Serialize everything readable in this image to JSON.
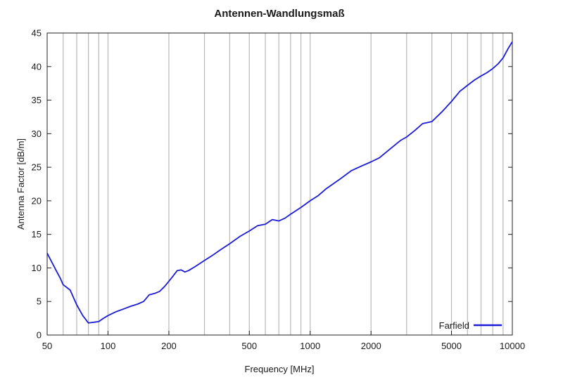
{
  "chart_data": {
    "type": "line",
    "title": "Antennen-Wandlungsmaß",
    "xlabel": "Frequency [MHz]",
    "ylabel": "Antenna Factor [dB/m]",
    "x_scale": "log",
    "xlim": [
      50,
      10000
    ],
    "ylim": [
      0,
      45
    ],
    "x_ticks": [
      50,
      100,
      200,
      500,
      1000,
      2000,
      5000,
      10000
    ],
    "x_tick_labels": [
      "50",
      "100",
      "200",
      "500",
      "1000",
      "2000",
      "5000",
      "10000"
    ],
    "y_ticks": [
      0,
      5,
      10,
      15,
      20,
      25,
      30,
      35,
      40,
      45
    ],
    "y_tick_labels": [
      "0",
      "5",
      "10",
      "15",
      "20",
      "25",
      "30",
      "35",
      "40",
      "45"
    ],
    "grid": "vertical",
    "legend_position": "bottom-right",
    "series": [
      {
        "name": "Farfield",
        "color": "#1c1cd6",
        "x": [
          50,
          55,
          58,
          60,
          65,
          70,
          75,
          80,
          85,
          90,
          95,
          100,
          110,
          120,
          130,
          140,
          150,
          160,
          170,
          180,
          190,
          200,
          210,
          220,
          230,
          240,
          250,
          270,
          300,
          330,
          360,
          400,
          450,
          500,
          550,
          600,
          650,
          700,
          750,
          800,
          900,
          1000,
          1100,
          1200,
          1400,
          1600,
          1800,
          2000,
          2200,
          2500,
          2800,
          3000,
          3300,
          3600,
          4000,
          4500,
          5000,
          5500,
          6000,
          6500,
          7000,
          7500,
          8000,
          8500,
          9000,
          9500,
          10000
        ],
        "values": [
          12.2,
          9.8,
          8.5,
          7.5,
          6.7,
          4.5,
          2.9,
          1.8,
          1.9,
          2.0,
          2.5,
          2.9,
          3.5,
          3.9,
          4.3,
          4.6,
          5.0,
          6.0,
          6.2,
          6.5,
          7.2,
          8.0,
          8.8,
          9.6,
          9.7,
          9.4,
          9.6,
          10.2,
          11.1,
          11.9,
          12.7,
          13.6,
          14.7,
          15.5,
          16.3,
          16.5,
          17.2,
          17.0,
          17.4,
          18.0,
          19.0,
          20.0,
          20.8,
          21.8,
          23.2,
          24.5,
          25.2,
          25.8,
          26.4,
          27.8,
          29.0,
          29.5,
          30.5,
          31.5,
          31.8,
          33.3,
          34.8,
          36.3,
          37.2,
          38.0,
          38.6,
          39.1,
          39.7,
          40.4,
          41.3,
          42.6,
          43.7
        ]
      }
    ]
  }
}
